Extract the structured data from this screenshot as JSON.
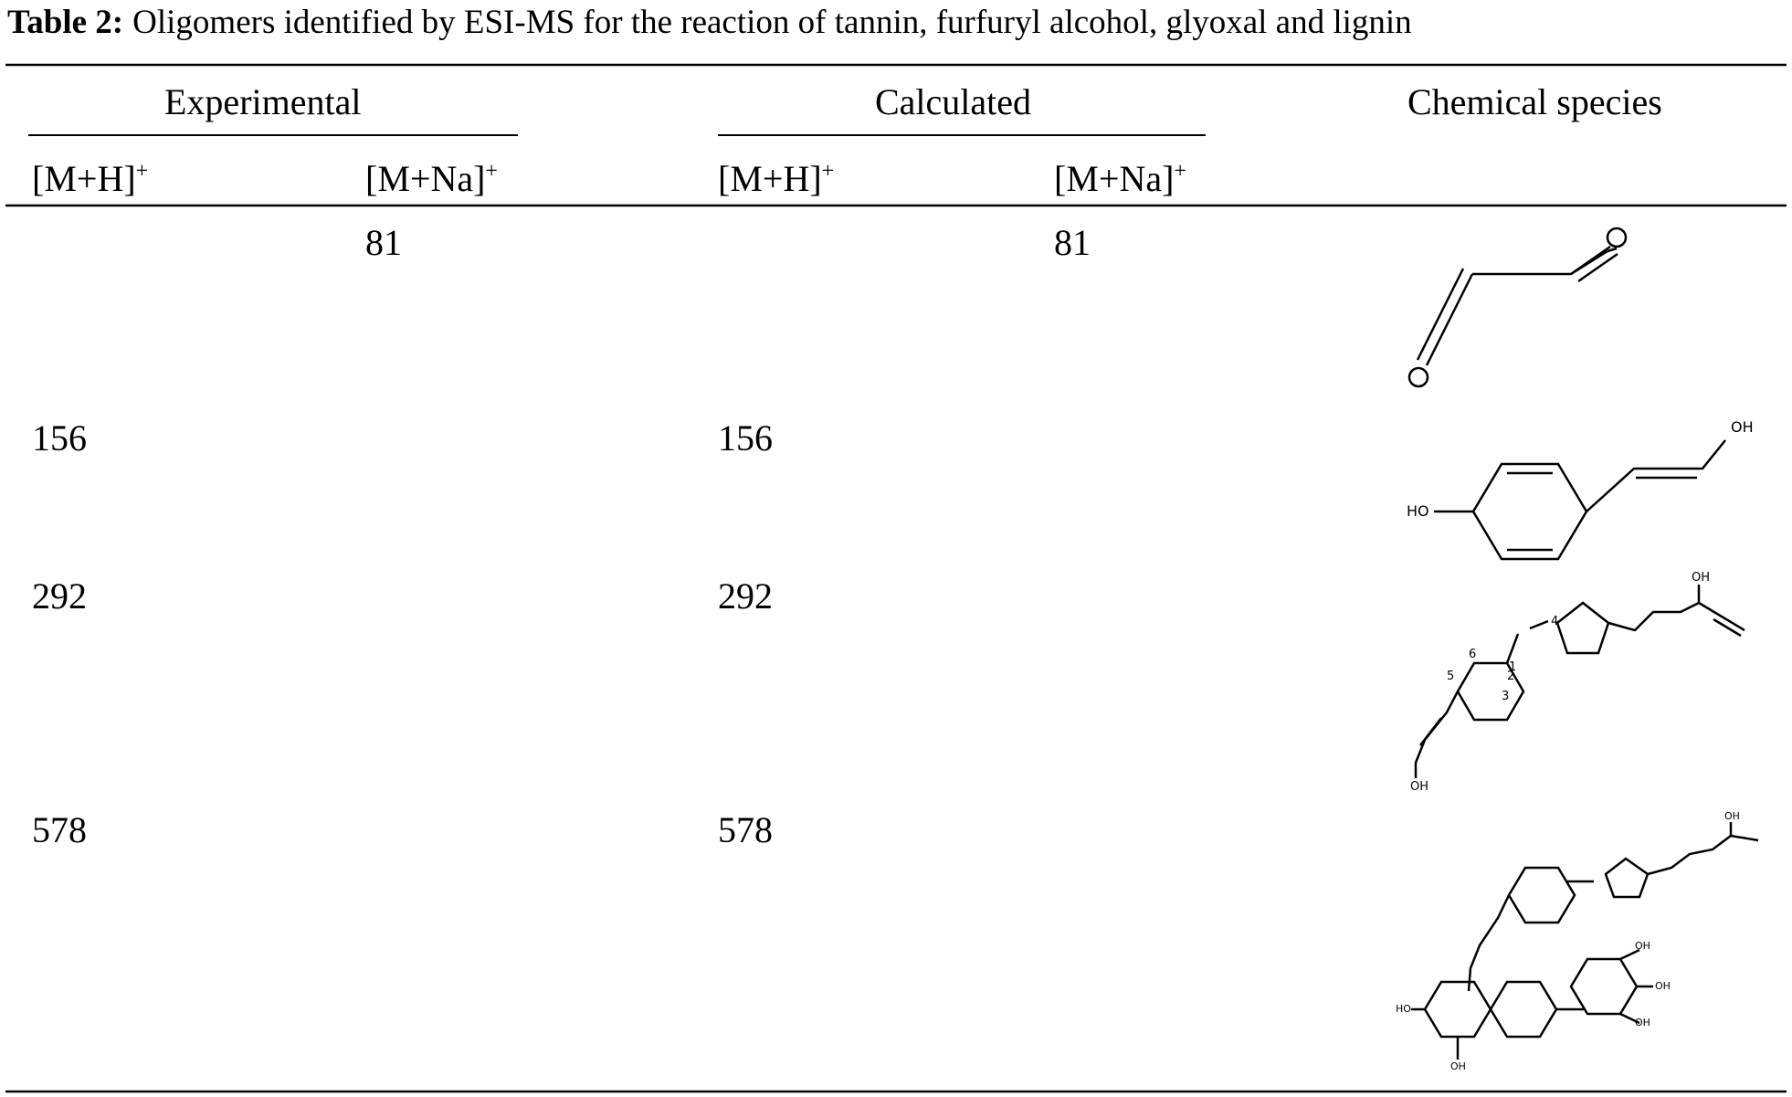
{
  "title": {
    "label": "Table 2:",
    "text": "Oligomers identified by ESI-MS for the reaction of tannin, furfuryl alcohol, glyoxal and lignin"
  },
  "table": {
    "groups": [
      "Experimental",
      "Calculated",
      "Chemical species"
    ],
    "subheaders": [
      {
        "base": "[M+H]",
        "sup": "+"
      },
      {
        "base": "[M+Na]",
        "sup": "+"
      },
      {
        "base": "[M+H]",
        "sup": "+"
      },
      {
        "base": "[M+Na]",
        "sup": "+"
      }
    ],
    "rows": [
      {
        "exp_na": "81",
        "calc_na": "81"
      },
      {
        "exp_mh": "156",
        "calc_mh": "156"
      },
      {
        "exp_mh": "292",
        "calc_mh": "292"
      },
      {
        "exp_mh": "578",
        "calc_mh": "578"
      }
    ]
  },
  "structures": [
    {
      "labels": []
    },
    {
      "labels": [
        "OH",
        "HO"
      ]
    },
    {
      "labels": [
        "OH",
        "4",
        "1",
        "2",
        "3",
        "5",
        "6",
        "OH"
      ]
    },
    {
      "labels": [
        "OH",
        "OH",
        "OH",
        "OH",
        "HO",
        "OH"
      ]
    }
  ]
}
